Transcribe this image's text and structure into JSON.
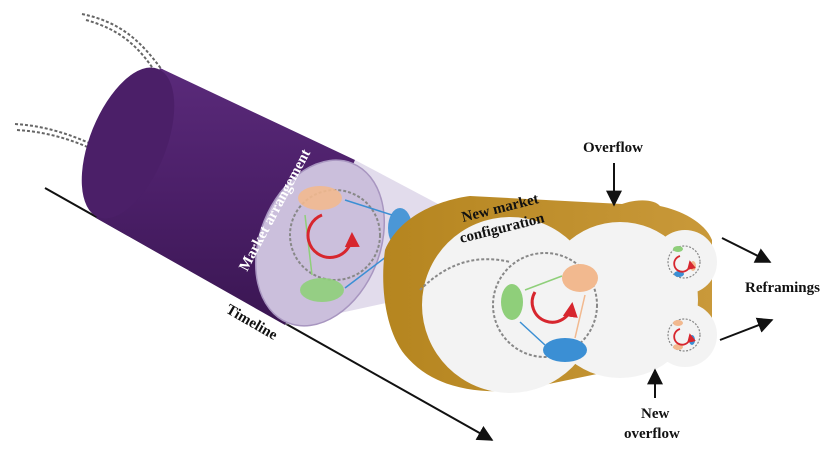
{
  "labels": {
    "market_arrangement": "Market arrangement",
    "new_market_line1": "New market",
    "new_market_line2": "configuration",
    "overflow": "Overflow",
    "reframings": "Reframings",
    "new_overflow_line1": "New",
    "new_overflow_line2": "overflow",
    "timeline": "Timeline"
  },
  "colors": {
    "cylinder": "#4b1f68",
    "cylinder_dark": "#3a1652",
    "end_cap": "#cbbfdc",
    "tube": "#bf8f2b",
    "tube_dark": "#a87a1f",
    "face": "#f3f3f3",
    "orange_node": "#f2b98f",
    "blue_node": "#3b8fd4",
    "green_node": "#8fcf7a",
    "cycle_arrow": "#d7262e"
  }
}
